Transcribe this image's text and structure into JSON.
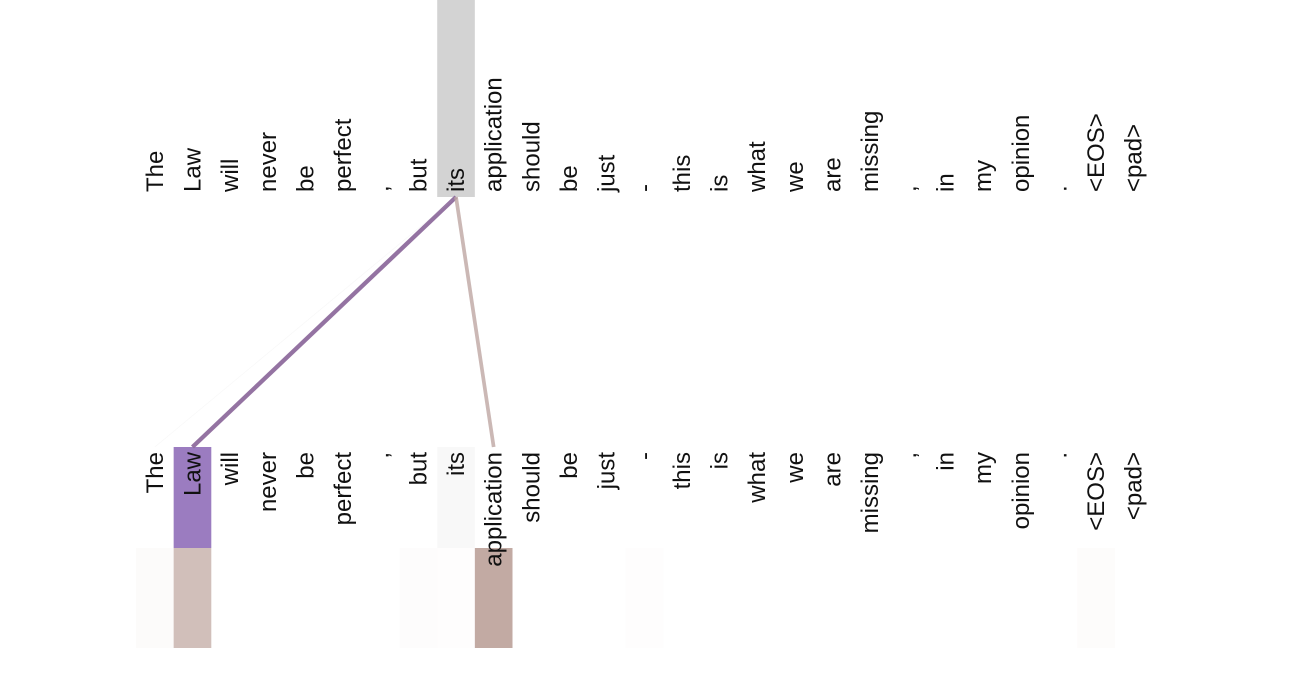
{
  "tokens": [
    "The",
    "Law",
    "will",
    "never",
    "be",
    "perfect",
    ",",
    "but",
    "its",
    "application",
    "should",
    "be",
    "just",
    "-",
    "this",
    "is",
    "what",
    "we",
    "are",
    "missing",
    ",",
    "in",
    "my",
    "opinion",
    ".",
    "<EOS>",
    "<pad>"
  ],
  "selected_index": 8,
  "colors": {
    "selected_highlight": "#d3d3d3",
    "strong_line": "#8e6b9d",
    "second_line": "#bea6a3",
    "strong_target": "#9b7cc0",
    "attention_base": "#c2aaa3"
  },
  "attention": {
    "lines": [
      {
        "to": 1,
        "weight": 0.95,
        "color": "#8e6b9d"
      },
      {
        "to": 9,
        "weight": 0.8,
        "color": "#bea6a3"
      },
      {
        "to": 0,
        "weight": 0.03,
        "color": "#cccccc"
      }
    ],
    "target_highlight": [
      {
        "index": 1,
        "color": "#9b7cc0",
        "opacity": 1.0
      },
      {
        "index": 8,
        "color": "#eeeeee",
        "opacity": 0.4
      }
    ],
    "heat": [
      0.05,
      0.75,
      0,
      0,
      0,
      0,
      0,
      0.03,
      0.02,
      1.0,
      0,
      0,
      0,
      0.02,
      0,
      0,
      0,
      0,
      0,
      0,
      0,
      0,
      0,
      0,
      0,
      0.04,
      0
    ]
  }
}
